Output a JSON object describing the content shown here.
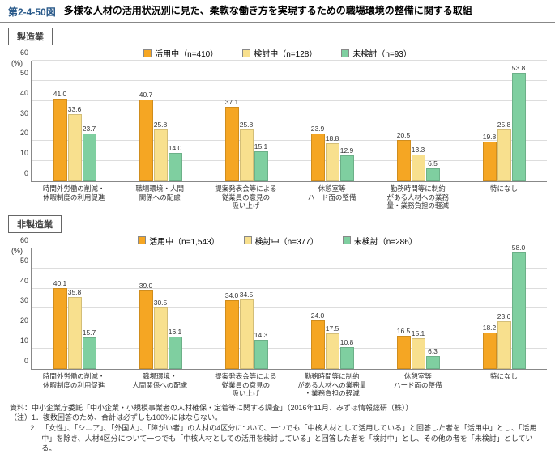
{
  "figure_number": "第2-4-50図",
  "figure_title": "多様な人材の活用状況別に見た、柔軟な働き方を実現するための職場環境の整備に関する取組",
  "legend": [
    {
      "label": "活用中（n=410）",
      "color": "#f5a623"
    },
    {
      "label": "検討中（n=128）",
      "color": "#f8e08e"
    },
    {
      "label": "未検討（n=93）",
      "color": "#7fcfa0"
    }
  ],
  "legend2": [
    {
      "label": "活用中（n=1,543）",
      "color": "#f5a623"
    },
    {
      "label": "検討中（n=377）",
      "color": "#f8e08e"
    },
    {
      "label": "未検討（n=286）",
      "color": "#7fcfa0"
    }
  ],
  "y": {
    "label": "(%)",
    "max": 60,
    "ticks": [
      0,
      10,
      20,
      30,
      40,
      50,
      60
    ]
  },
  "colors": {
    "s1": "#f5a623",
    "s2": "#f8e08e",
    "s3": "#7fcfa0"
  },
  "panel1": {
    "title": "製造業",
    "categories": [
      "時間外労働の削減・\n休暇制度の利用促進",
      "職場環境・人間\n関係への配慮",
      "提案発表会等による\n従業員の意見の\n吸い上げ",
      "休憩室等\nハード面の整備",
      "勤務時間等に制約\nがある人材への業務\n量・業務負担の軽減",
      "特になし"
    ],
    "data": [
      [
        41.0,
        33.6,
        23.7
      ],
      [
        40.7,
        25.8,
        14.0
      ],
      [
        37.1,
        25.8,
        15.1
      ],
      [
        23.9,
        18.8,
        12.9
      ],
      [
        20.5,
        13.3,
        6.5
      ],
      [
        19.8,
        25.8,
        53.8
      ]
    ]
  },
  "panel2": {
    "title": "非製造業",
    "categories": [
      "時間外労働の削減・\n休暇制度の利用促進",
      "職場環境・\n人間関係への配慮",
      "提案発表会等による\n従業員の意見の\n吸い上げ",
      "勤務時間等に制約\nがある人材への業務量\n・業務負担の軽減",
      "休憩室等\nハード面の整備",
      "特になし"
    ],
    "data": [
      [
        40.1,
        35.8,
        15.7
      ],
      [
        39.0,
        30.5,
        16.1
      ],
      [
        34.0,
        34.5,
        14.3
      ],
      [
        24.0,
        17.5,
        10.8
      ],
      [
        16.5,
        15.1,
        6.3
      ],
      [
        18.2,
        23.6,
        58.0
      ]
    ]
  },
  "footer": {
    "source": "資料：中小企業庁委託「中小企業・小規模事業者の人材確保・定着等に関する調査」（2016年11月、みずほ情報総研（株））",
    "note1_key": "（注）1．",
    "note1": "複数回答のため、合計は必ずしも100%にはならない。",
    "note2_key": "2．",
    "note2": "「女性」、「シニア」、「外国人」、「障がい者」の人材の4区分について、一つでも「中核人材として活用している」と回答した者を「活用中」とし、「活用中」を除き、人材4区分について一つでも「中核人材としての活用を検討している」と回答した者を「検討中」とし、その他の者を「未検討」としている。"
  }
}
